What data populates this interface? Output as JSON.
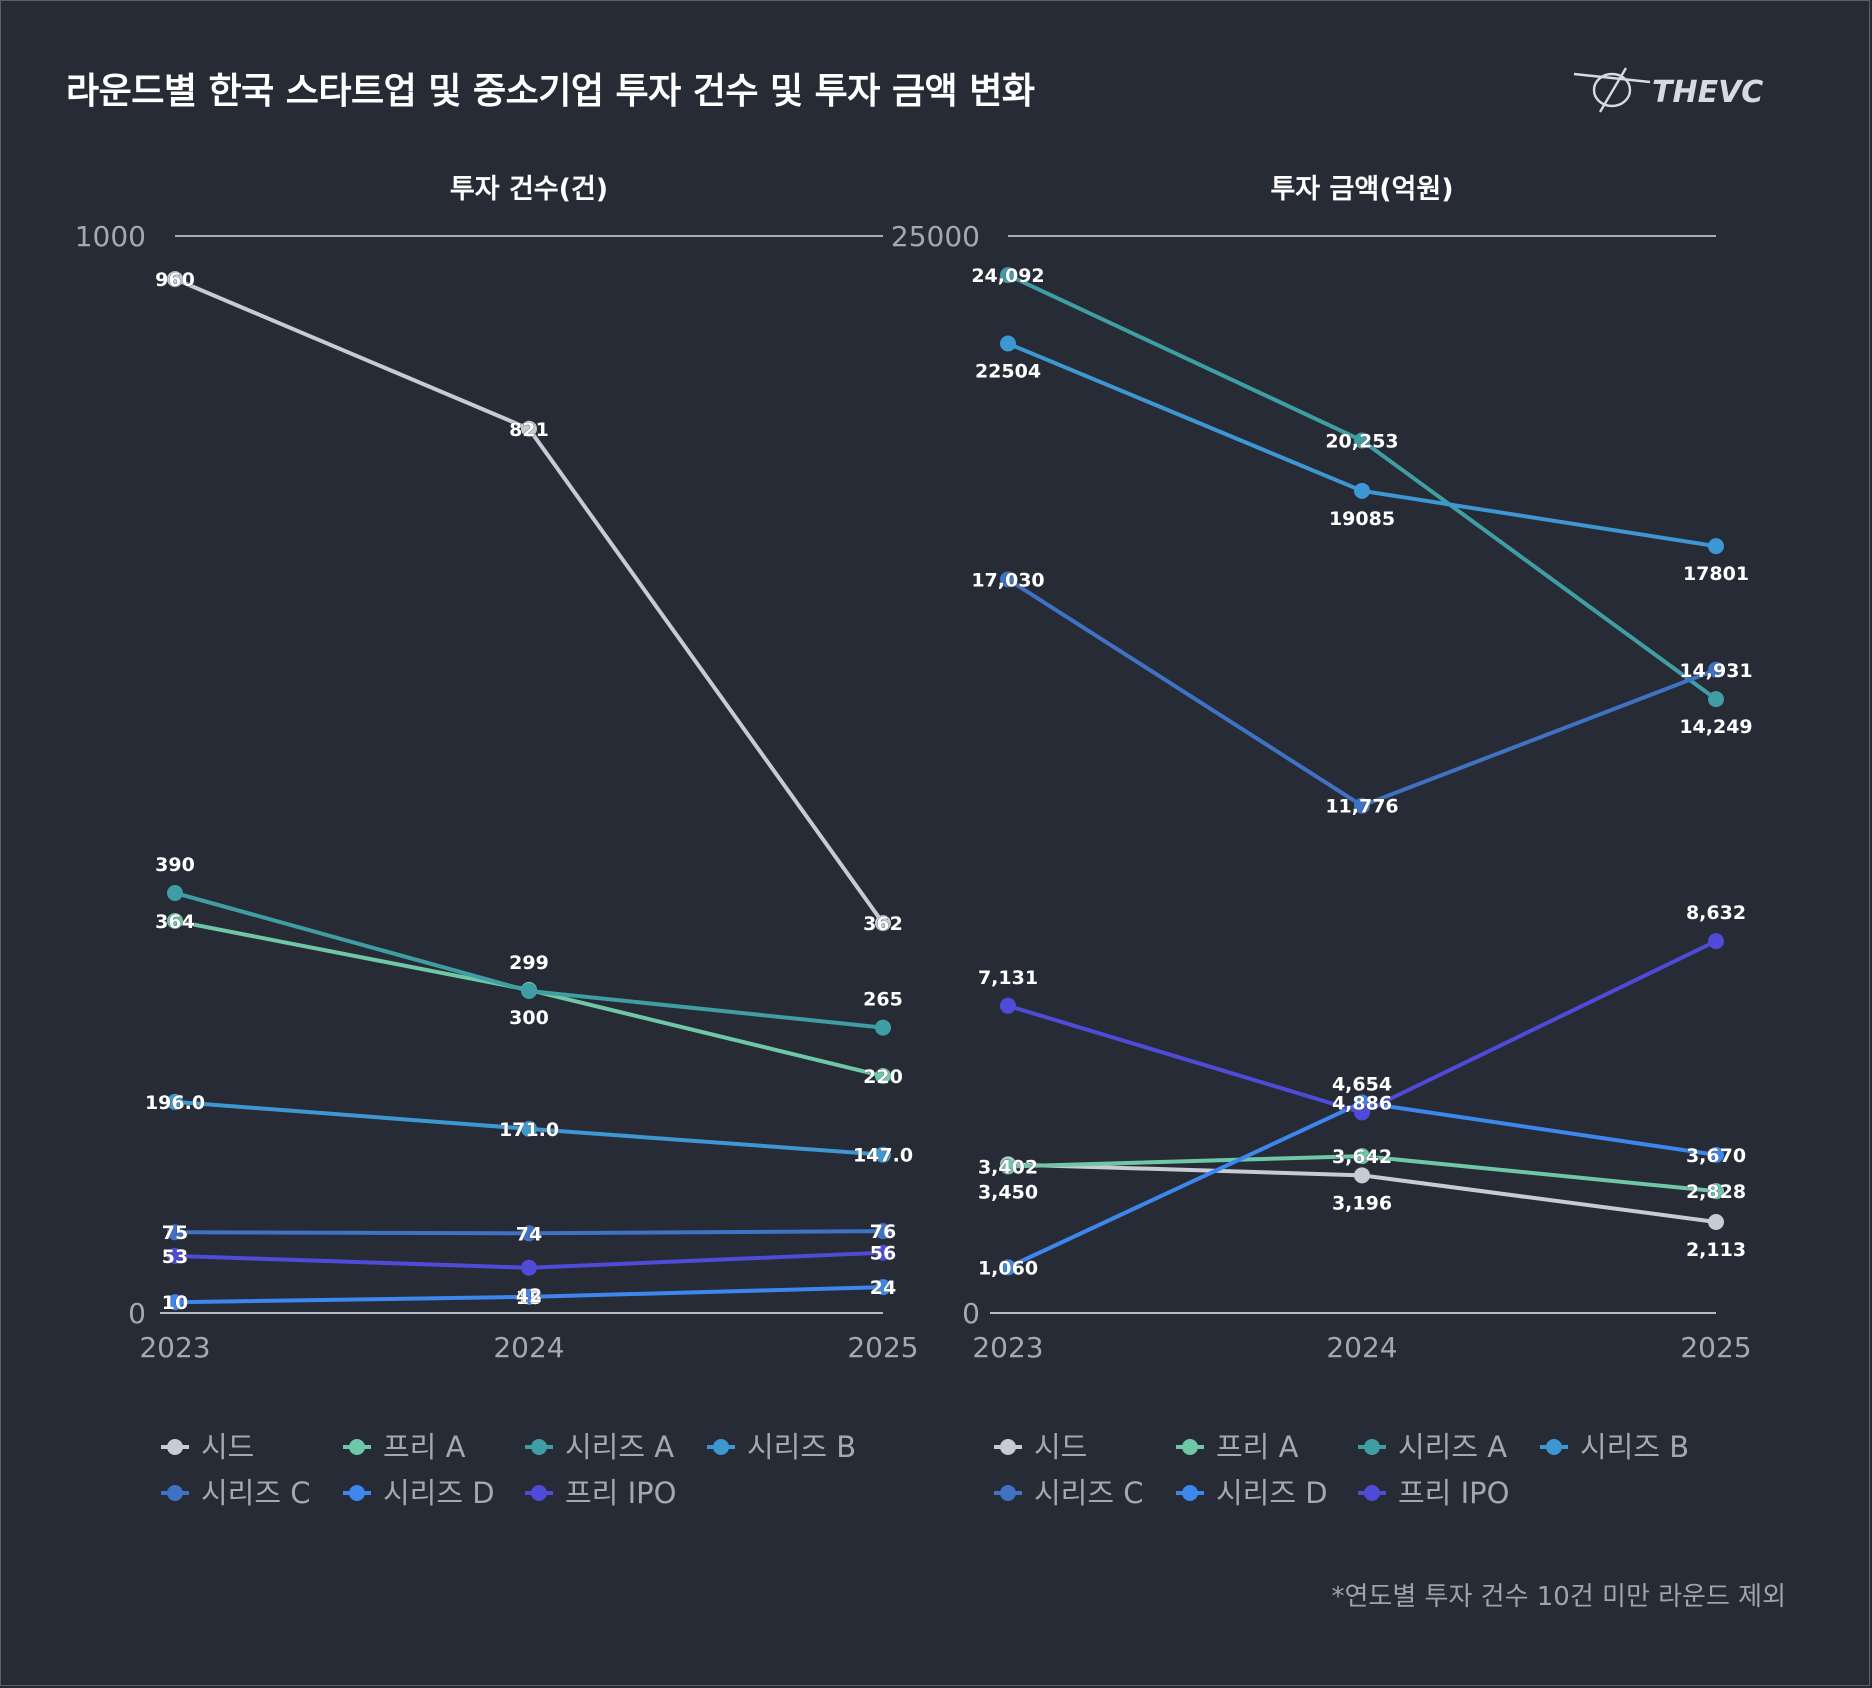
{
  "title": "라운드별 한국 스타트업 및 중소기업 투자 건수 및 투자 금액 변화",
  "brand": "THEVC",
  "footnote": "*연도별 투자 건수 10건 미만 라운드 제외",
  "chart_data": [
    {
      "type": "line",
      "title": "투자 건수(건)",
      "x": [
        "2023",
        "2024",
        "2025"
      ],
      "ylim": [
        0,
        1000
      ],
      "yticks": [
        "0",
        "1000"
      ],
      "grid": false,
      "legend": "bottom",
      "series": [
        {
          "name": "시드",
          "color": "#c7cbd4",
          "values": [
            960,
            821,
            362
          ],
          "labels": [
            "960",
            "821",
            "362"
          ]
        },
        {
          "name": "프리 A",
          "color": "#6ec8a7",
          "values": [
            364,
            300,
            220
          ],
          "labels": [
            "364",
            "300",
            "220"
          ]
        },
        {
          "name": "시리즈 A",
          "color": "#3f9ea3",
          "values": [
            390,
            299,
            265
          ],
          "labels": [
            "390",
            "299",
            "265"
          ]
        },
        {
          "name": "시리즈 B",
          "color": "#3c97d3",
          "values": [
            196,
            171,
            147
          ],
          "labels": [
            "196.0",
            "171.0",
            "147.0"
          ]
        },
        {
          "name": "시리즈 C",
          "color": "#3f72c4",
          "values": [
            75,
            74,
            76
          ],
          "labels": [
            "75",
            "74",
            "76"
          ]
        },
        {
          "name": "시리즈 D",
          "color": "#3c86ee",
          "values": [
            10,
            15,
            24
          ],
          "labels": [
            "10",
            "15",
            "24"
          ]
        },
        {
          "name": "프리 IPO",
          "color": "#4f4ad8",
          "values": [
            53,
            42,
            56
          ],
          "labels": [
            "53",
            "42",
            "56"
          ]
        }
      ]
    },
    {
      "type": "line",
      "title": "투자 금액(억원)",
      "x": [
        "2023",
        "2024",
        "2025"
      ],
      "ylim": [
        0,
        25000
      ],
      "yticks": [
        "0",
        "25000"
      ],
      "grid": false,
      "legend": "bottom",
      "series": [
        {
          "name": "시드",
          "color": "#c7cbd4",
          "values": [
            3450,
            3196,
            2113
          ],
          "labels": [
            "3,450",
            "3,196",
            "2,113"
          ]
        },
        {
          "name": "프리 A",
          "color": "#6ec8a7",
          "values": [
            3402,
            3642,
            2828
          ],
          "labels": [
            "3,402",
            "3,642",
            "2,828"
          ]
        },
        {
          "name": "시리즈 A",
          "color": "#3f9ea3",
          "values": [
            24092,
            20253,
            14249
          ],
          "labels": [
            "24,092",
            "20,253",
            "14,249"
          ]
        },
        {
          "name": "시리즈 B",
          "color": "#3c97d3",
          "values": [
            22504,
            19085,
            17801
          ],
          "labels": [
            "22504",
            "19085",
            "17801"
          ]
        },
        {
          "name": "시리즈 C",
          "color": "#3f72c4",
          "values": [
            17030,
            11776,
            14931
          ],
          "labels": [
            "17,030",
            "11,776",
            "14,931"
          ]
        },
        {
          "name": "시리즈 D",
          "color": "#3c86ee",
          "values": [
            1060,
            4886,
            3670
          ],
          "labels": [
            "1,060",
            "4,886",
            "3,670"
          ]
        },
        {
          "name": "프리 IPO",
          "color": "#4f4ad8",
          "values": [
            7131,
            4654,
            8632
          ],
          "labels": [
            "7,131",
            "4,654",
            "8,632"
          ]
        }
      ]
    }
  ]
}
